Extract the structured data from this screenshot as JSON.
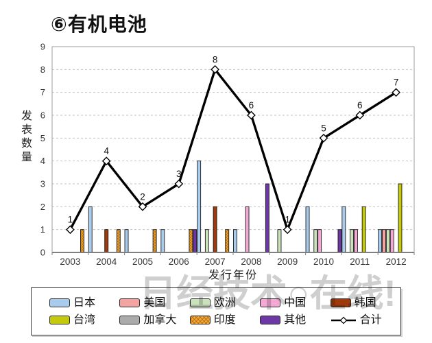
{
  "watermark": "日经技术○在线!",
  "chart_data": {
    "type": "bar",
    "subtype": "grouped-bars-with-total-line",
    "title": "⑥有机电池",
    "xlabel": "发行年份",
    "ylabel": "发表数量",
    "ylim": [
      0,
      9
    ],
    "ytick_step": 1,
    "grid": "horizontal-dashed",
    "legend_position": "bottom",
    "categories": [
      "2003",
      "2004",
      "2005",
      "2006",
      "2007",
      "2008",
      "2009",
      "2010",
      "2011",
      "2012"
    ],
    "series": [
      {
        "key": "japan",
        "name": "日本",
        "type": "bar",
        "color": "#A9CCEC",
        "values": [
          0,
          2,
          1,
          1,
          4,
          1,
          0,
          2,
          2,
          1
        ]
      },
      {
        "key": "usa",
        "name": "美国",
        "type": "bar",
        "color": "#F4A3A3",
        "values": [
          0,
          0,
          0,
          0,
          0,
          0,
          0,
          0,
          0,
          1
        ]
      },
      {
        "key": "europe",
        "name": "欧洲",
        "type": "bar",
        "color": "#CBE3BD",
        "values": [
          0,
          0,
          0,
          0,
          1,
          0,
          1,
          1,
          1,
          1
        ]
      },
      {
        "key": "china",
        "name": "中国",
        "type": "bar",
        "color": "#F3A9D4",
        "values": [
          0,
          0,
          0,
          0,
          0,
          2,
          0,
          1,
          1,
          1
        ]
      },
      {
        "key": "korea",
        "name": "韩国",
        "type": "bar",
        "color": "#9E3A0B",
        "values": [
          0,
          1,
          0,
          0,
          2,
          0,
          0,
          0,
          0,
          0
        ]
      },
      {
        "key": "taiwan",
        "name": "台湾",
        "type": "bar",
        "color": "#C4CA0B",
        "values": [
          0,
          0,
          0,
          0,
          0,
          0,
          0,
          0,
          2,
          3
        ]
      },
      {
        "key": "canada",
        "name": "加拿大",
        "type": "bar",
        "color": "#ABABAB",
        "values": [
          0,
          0,
          0,
          0,
          0,
          0,
          0,
          0,
          0,
          0
        ]
      },
      {
        "key": "india",
        "name": "印度",
        "type": "bar",
        "color": "#F6A93C",
        "pattern": "crosshatch",
        "values": [
          1,
          1,
          1,
          1,
          1,
          0,
          0,
          0,
          0,
          0
        ]
      },
      {
        "key": "other",
        "name": "其他",
        "type": "bar",
        "color": "#6D37A6",
        "values": [
          0,
          0,
          0,
          1,
          0,
          3,
          0,
          1,
          0,
          0
        ]
      },
      {
        "key": "total",
        "name": "合计",
        "type": "line",
        "color": "#000000",
        "marker": "diamond",
        "values": [
          1,
          4,
          2,
          3,
          8,
          6,
          1,
          5,
          6,
          7
        ]
      }
    ]
  }
}
